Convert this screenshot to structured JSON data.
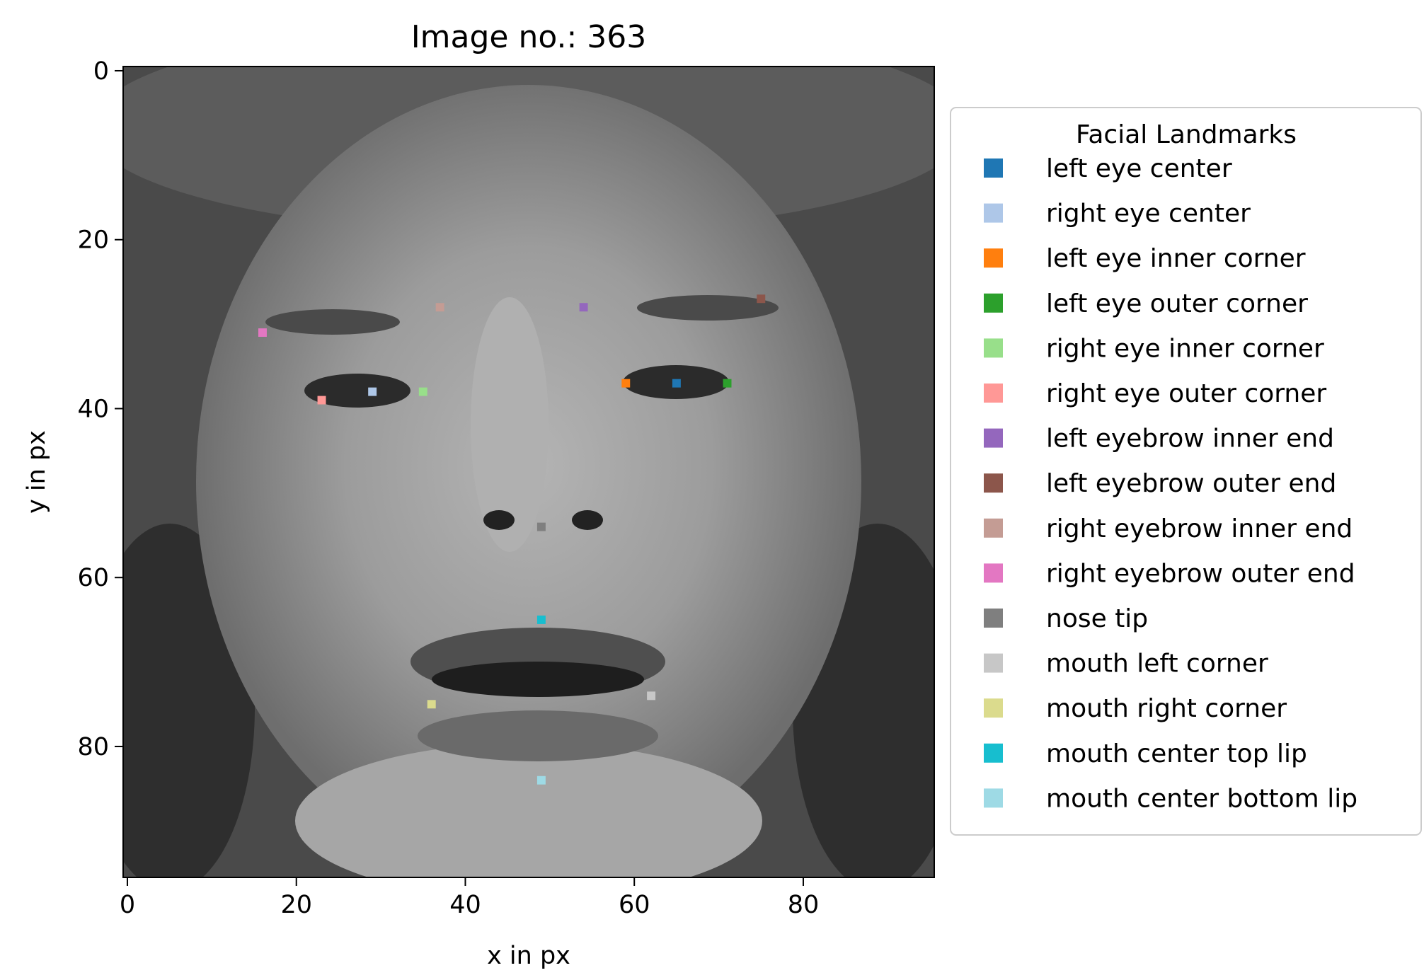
{
  "chart_data": {
    "type": "scatter",
    "title": "Image no.: 363",
    "xlabel": "x in px",
    "ylabel": "y in px",
    "xlim": [
      -0.5,
      95.5
    ],
    "ylim": [
      95.5,
      -0.5
    ],
    "y_inverted": true,
    "x_ticks": [
      0,
      20,
      40,
      60,
      80
    ],
    "y_ticks": [
      0,
      20,
      40,
      60,
      80
    ],
    "background": "96x96 grayscale face photograph",
    "legend": {
      "title": "Facial Landmarks",
      "placement": "right, outside plot"
    },
    "series": [
      {
        "name": "left eye center",
        "color": "#1f77b4",
        "x": 65,
        "y": 37
      },
      {
        "name": "right eye center",
        "color": "#aec7e8",
        "x": 29,
        "y": 38
      },
      {
        "name": "left eye inner corner",
        "color": "#ff7f0e",
        "x": 59,
        "y": 37
      },
      {
        "name": "left eye outer corner",
        "color": "#2ca02c",
        "x": 71,
        "y": 37
      },
      {
        "name": "right eye inner corner",
        "color": "#98df8a",
        "x": 35,
        "y": 38
      },
      {
        "name": "right eye outer corner",
        "color": "#ff9896",
        "x": 23,
        "y": 39
      },
      {
        "name": "left eyebrow inner end",
        "color": "#9467bd",
        "x": 54,
        "y": 28
      },
      {
        "name": "left eyebrow outer end",
        "color": "#8c564b",
        "x": 75,
        "y": 27
      },
      {
        "name": "right eyebrow inner end",
        "color": "#c49c94",
        "x": 37,
        "y": 28
      },
      {
        "name": "right eyebrow outer end",
        "color": "#e377c2",
        "x": 16,
        "y": 31
      },
      {
        "name": "nose tip",
        "color": "#7f7f7f",
        "x": 49,
        "y": 54
      },
      {
        "name": "mouth left corner",
        "color": "#c7c7c7",
        "x": 62,
        "y": 74
      },
      {
        "name": "mouth right corner",
        "color": "#dbdb8d",
        "x": 36,
        "y": 75
      },
      {
        "name": "mouth center top lip",
        "color": "#17becf",
        "x": 49,
        "y": 65
      },
      {
        "name": "mouth center bottom lip",
        "color": "#9edae5",
        "x": 49,
        "y": 84
      }
    ]
  }
}
